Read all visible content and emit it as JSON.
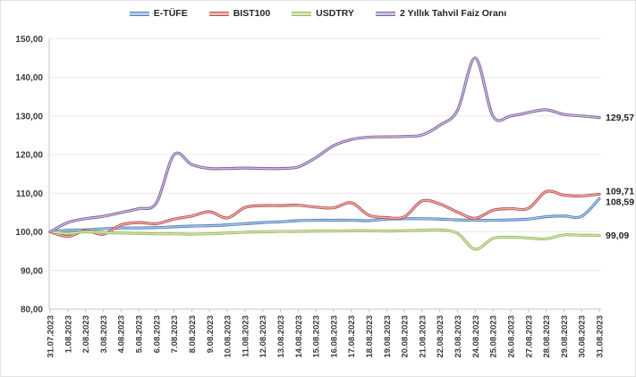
{
  "chart_data": {
    "type": "line",
    "title": "",
    "legend_position": "top",
    "grid": true,
    "smooth": true,
    "x_categories": [
      "31.07.2023",
      "1.08.2023",
      "2.08.2023",
      "3.08.2023",
      "4.08.2023",
      "5.08.2023",
      "6.08.2023",
      "7.08.2023",
      "8.08.2023",
      "9.08.2023",
      "10.08.2023",
      "11.08.2023",
      "12.08.2023",
      "13.08.2023",
      "14.08.2023",
      "15.08.2023",
      "16.08.2023",
      "17.08.2023",
      "18.08.2023",
      "19.08.2023",
      "20.08.2023",
      "21.08.2023",
      "22.08.2023",
      "23.08.2023",
      "24.08.2023",
      "25.08.2023",
      "26.08.2023",
      "27.08.2023",
      "28.08.2023",
      "29.08.2023",
      "30.08.2023",
      "31.08.2023"
    ],
    "y_axis": {
      "min": 80,
      "max": 150,
      "step": 10,
      "tick_labels": [
        "150,00",
        "140,00",
        "130,00",
        "120,00",
        "110,00",
        "100,00",
        "90,00",
        "80,00"
      ]
    },
    "series": [
      {
        "name": "E-TÜFE",
        "color": "#4F81BD",
        "core_color": "#B8CCE4",
        "end_label": "108,59",
        "values": [
          100,
          100.4,
          100.5,
          100.8,
          101.0,
          101.0,
          101.1,
          101.3,
          101.5,
          101.6,
          101.8,
          102.1,
          102.4,
          102.6,
          102.9,
          103.0,
          103.0,
          103.0,
          102.9,
          103.3,
          103.4,
          103.4,
          103.3,
          103.1,
          103.0,
          103.0,
          103.1,
          103.3,
          103.9,
          104.1,
          104.0,
          108.59
        ]
      },
      {
        "name": "BIST100",
        "color": "#C0504D",
        "core_color": "#E6B8B7",
        "end_label": "109,71",
        "values": [
          100,
          98.8,
          100.3,
          99.4,
          101.8,
          102.4,
          102.1,
          103.3,
          104.1,
          105.2,
          103.6,
          106.3,
          106.8,
          106.8,
          106.9,
          106.4,
          106.2,
          107.5,
          104.3,
          103.7,
          103.9,
          108.0,
          107.2,
          105.1,
          103.5,
          105.6,
          106.0,
          106.1,
          110.4,
          109.5,
          109.3,
          109.71
        ]
      },
      {
        "name": "USDTRY",
        "color": "#9BBB59",
        "core_color": "#D7E4BD",
        "end_label": "99,09",
        "values": [
          100,
          99.6,
          100.0,
          99.8,
          99.7,
          99.6,
          99.5,
          99.5,
          99.4,
          99.5,
          99.7,
          99.9,
          100.0,
          100.1,
          100.1,
          100.2,
          100.2,
          100.3,
          100.3,
          100.2,
          100.3,
          100.4,
          100.5,
          99.6,
          95.5,
          98.3,
          98.6,
          98.4,
          98.2,
          99.2,
          99.15,
          99.09
        ]
      },
      {
        "name": "2 Yıllık Tahvil Faiz Oranı",
        "color": "#8064A2",
        "core_color": "#CCC1D9",
        "end_label": "129,57",
        "values": [
          100,
          102.4,
          103.4,
          104.0,
          105.0,
          106.0,
          107.5,
          120.0,
          117.4,
          116.4,
          116.4,
          116.5,
          116.4,
          116.4,
          116.8,
          119.2,
          122.3,
          123.9,
          124.5,
          124.6,
          124.7,
          125.1,
          127.6,
          131.5,
          145.0,
          129.9,
          130.0,
          130.9,
          131.6,
          130.4,
          130.0,
          129.57
        ]
      }
    ],
    "colors": {
      "gridline": "#e9e9e9",
      "axis_line": "#c6c6c6",
      "axis_text": "#3a3a3a",
      "end_label_text": "#1f1f1f",
      "background": "#ffffff"
    }
  }
}
